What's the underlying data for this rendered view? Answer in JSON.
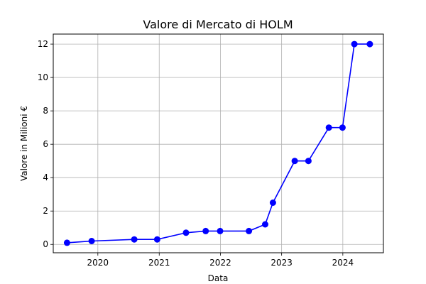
{
  "chart_data": {
    "type": "line",
    "title": "Valore di Mercato di HOLM",
    "xlabel": "Data",
    "ylabel": "Valore in Milioni €",
    "x_ticks": [
      "2020",
      "2021",
      "2022",
      "2023",
      "2024"
    ],
    "y_ticks": [
      "0",
      "2",
      "4",
      "6",
      "8",
      "10",
      "12"
    ],
    "xlim": [
      "2019-04-10",
      "2024-08-30"
    ],
    "ylim": [
      -0.5,
      12.6
    ],
    "grid": true,
    "series": [
      {
        "color": "#0000ff",
        "marker": "circle",
        "points": [
          {
            "x": "2019-07-01",
            "y": 0.1
          },
          {
            "x": "2019-11-25",
            "y": 0.2
          },
          {
            "x": "2020-08-05",
            "y": 0.3
          },
          {
            "x": "2020-12-20",
            "y": 0.3
          },
          {
            "x": "2021-06-10",
            "y": 0.7
          },
          {
            "x": "2021-10-05",
            "y": 0.8
          },
          {
            "x": "2021-12-30",
            "y": 0.8
          },
          {
            "x": "2022-06-20",
            "y": 0.8
          },
          {
            "x": "2022-09-25",
            "y": 1.2
          },
          {
            "x": "2022-11-10",
            "y": 2.5
          },
          {
            "x": "2023-03-20",
            "y": 5.0
          },
          {
            "x": "2023-06-10",
            "y": 5.0
          },
          {
            "x": "2023-10-10",
            "y": 7.0
          },
          {
            "x": "2023-12-30",
            "y": 7.0
          },
          {
            "x": "2024-03-10",
            "y": 12.0
          },
          {
            "x": "2024-06-10",
            "y": 12.0
          }
        ]
      }
    ]
  }
}
